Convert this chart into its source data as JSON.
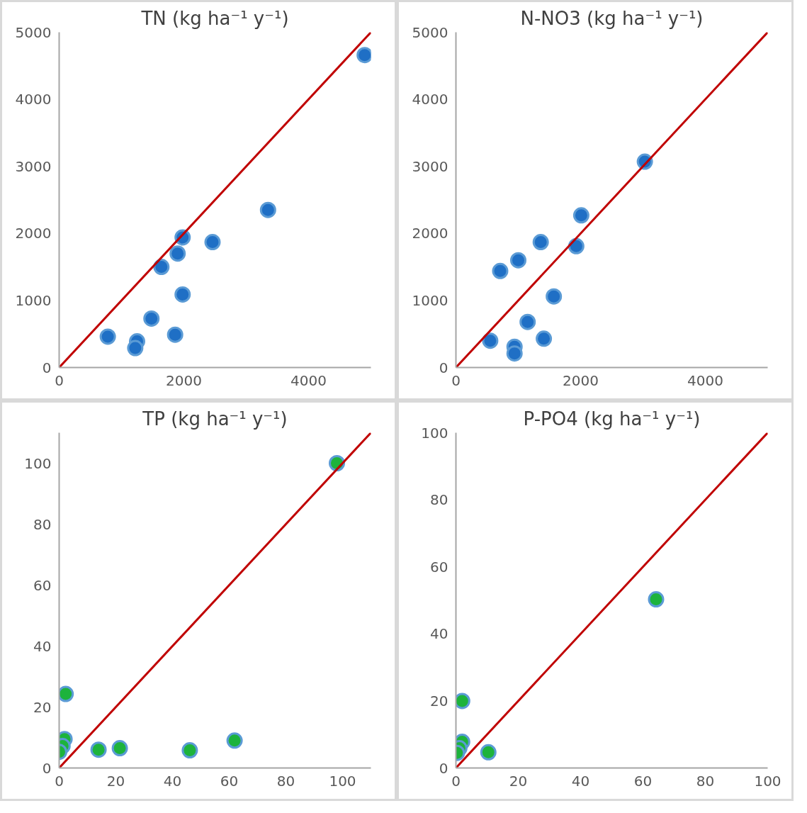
{
  "chart_data": [
    {
      "type": "scatter",
      "title": "TN (kg ha⁻¹ y⁻¹)",
      "grid": false,
      "xlim": [
        0,
        5000
      ],
      "xticks": [
        0,
        2000,
        4000
      ],
      "ylim": [
        0,
        5000
      ],
      "yticks": [
        0,
        1000,
        2000,
        3000,
        4000,
        5000
      ],
      "series": [
        {
          "marker": "circle",
          "color": "#1f6fc5",
          "x": [
            4900,
            3350,
            2460,
            1980,
            1900,
            1640,
            1980,
            1480,
            1860,
            780,
            1250,
            1220
          ],
          "values": [
            4660,
            2350,
            1870,
            1940,
            1700,
            1500,
            1090,
            730,
            490,
            460,
            390,
            290
          ]
        },
        {
          "type": "line",
          "marker": "none",
          "color": "#c00000",
          "x": [
            0,
            5000
          ],
          "values": [
            0,
            5000
          ]
        }
      ]
    },
    {
      "type": "scatter",
      "title": "N-NO3 (kg ha⁻¹ y⁻¹)",
      "grid": false,
      "xlim": [
        0,
        5000
      ],
      "xticks": [
        0,
        2000,
        4000
      ],
      "ylim": [
        0,
        5000
      ],
      "yticks": [
        0,
        1000,
        2000,
        3000,
        4000,
        5000
      ],
      "series": [
        {
          "marker": "circle",
          "color": "#1f6fc5",
          "x": [
            3030,
            2010,
            1930,
            1360,
            1000,
            710,
            1570,
            1150,
            1410,
            550,
            940,
            940
          ],
          "values": [
            3070,
            2270,
            1810,
            1870,
            1600,
            1440,
            1060,
            680,
            430,
            400,
            310,
            210
          ]
        },
        {
          "type": "line",
          "marker": "none",
          "color": "#c00000",
          "x": [
            0,
            5000
          ],
          "values": [
            0,
            5000
          ]
        }
      ]
    },
    {
      "type": "scatter",
      "title": "TP (kg ha⁻¹ y⁻¹)",
      "grid": false,
      "xlim": [
        0,
        110
      ],
      "xticks": [
        0,
        20,
        40,
        60,
        80,
        100
      ],
      "ylim": [
        0,
        110
      ],
      "yticks": [
        0,
        20,
        40,
        60,
        80,
        100
      ],
      "series": [
        {
          "marker": "circle",
          "color": "#1db33c",
          "x": [
            98,
            2.3,
            1.9,
            1.2,
            0,
            13.9,
            21.4,
            46.1,
            61.9
          ],
          "values": [
            100,
            24.3,
            9.5,
            7.2,
            5.3,
            6.0,
            6.5,
            5.8,
            9.0
          ]
        },
        {
          "type": "line",
          "marker": "none",
          "color": "#c00000",
          "x": [
            0,
            110
          ],
          "values": [
            0,
            110
          ]
        }
      ]
    },
    {
      "type": "scatter",
      "title": "P-PO4 (kg ha⁻¹ y⁻¹)",
      "grid": false,
      "xlim": [
        0,
        100
      ],
      "xticks": [
        0,
        20,
        40,
        60,
        80,
        100
      ],
      "ylim": [
        0,
        100
      ],
      "yticks": [
        0,
        20,
        40,
        60,
        80,
        100
      ],
      "series": [
        {
          "marker": "circle",
          "color": "#1db33c",
          "x": [
            64.2,
            2.0,
            2.0,
            1.1,
            0.3,
            10.4
          ],
          "values": [
            50.3,
            20.0,
            7.8,
            5.9,
            4.5,
            4.7
          ]
        },
        {
          "type": "line",
          "marker": "none",
          "color": "#c00000",
          "x": [
            0,
            100
          ],
          "values": [
            0,
            100
          ]
        }
      ]
    }
  ]
}
